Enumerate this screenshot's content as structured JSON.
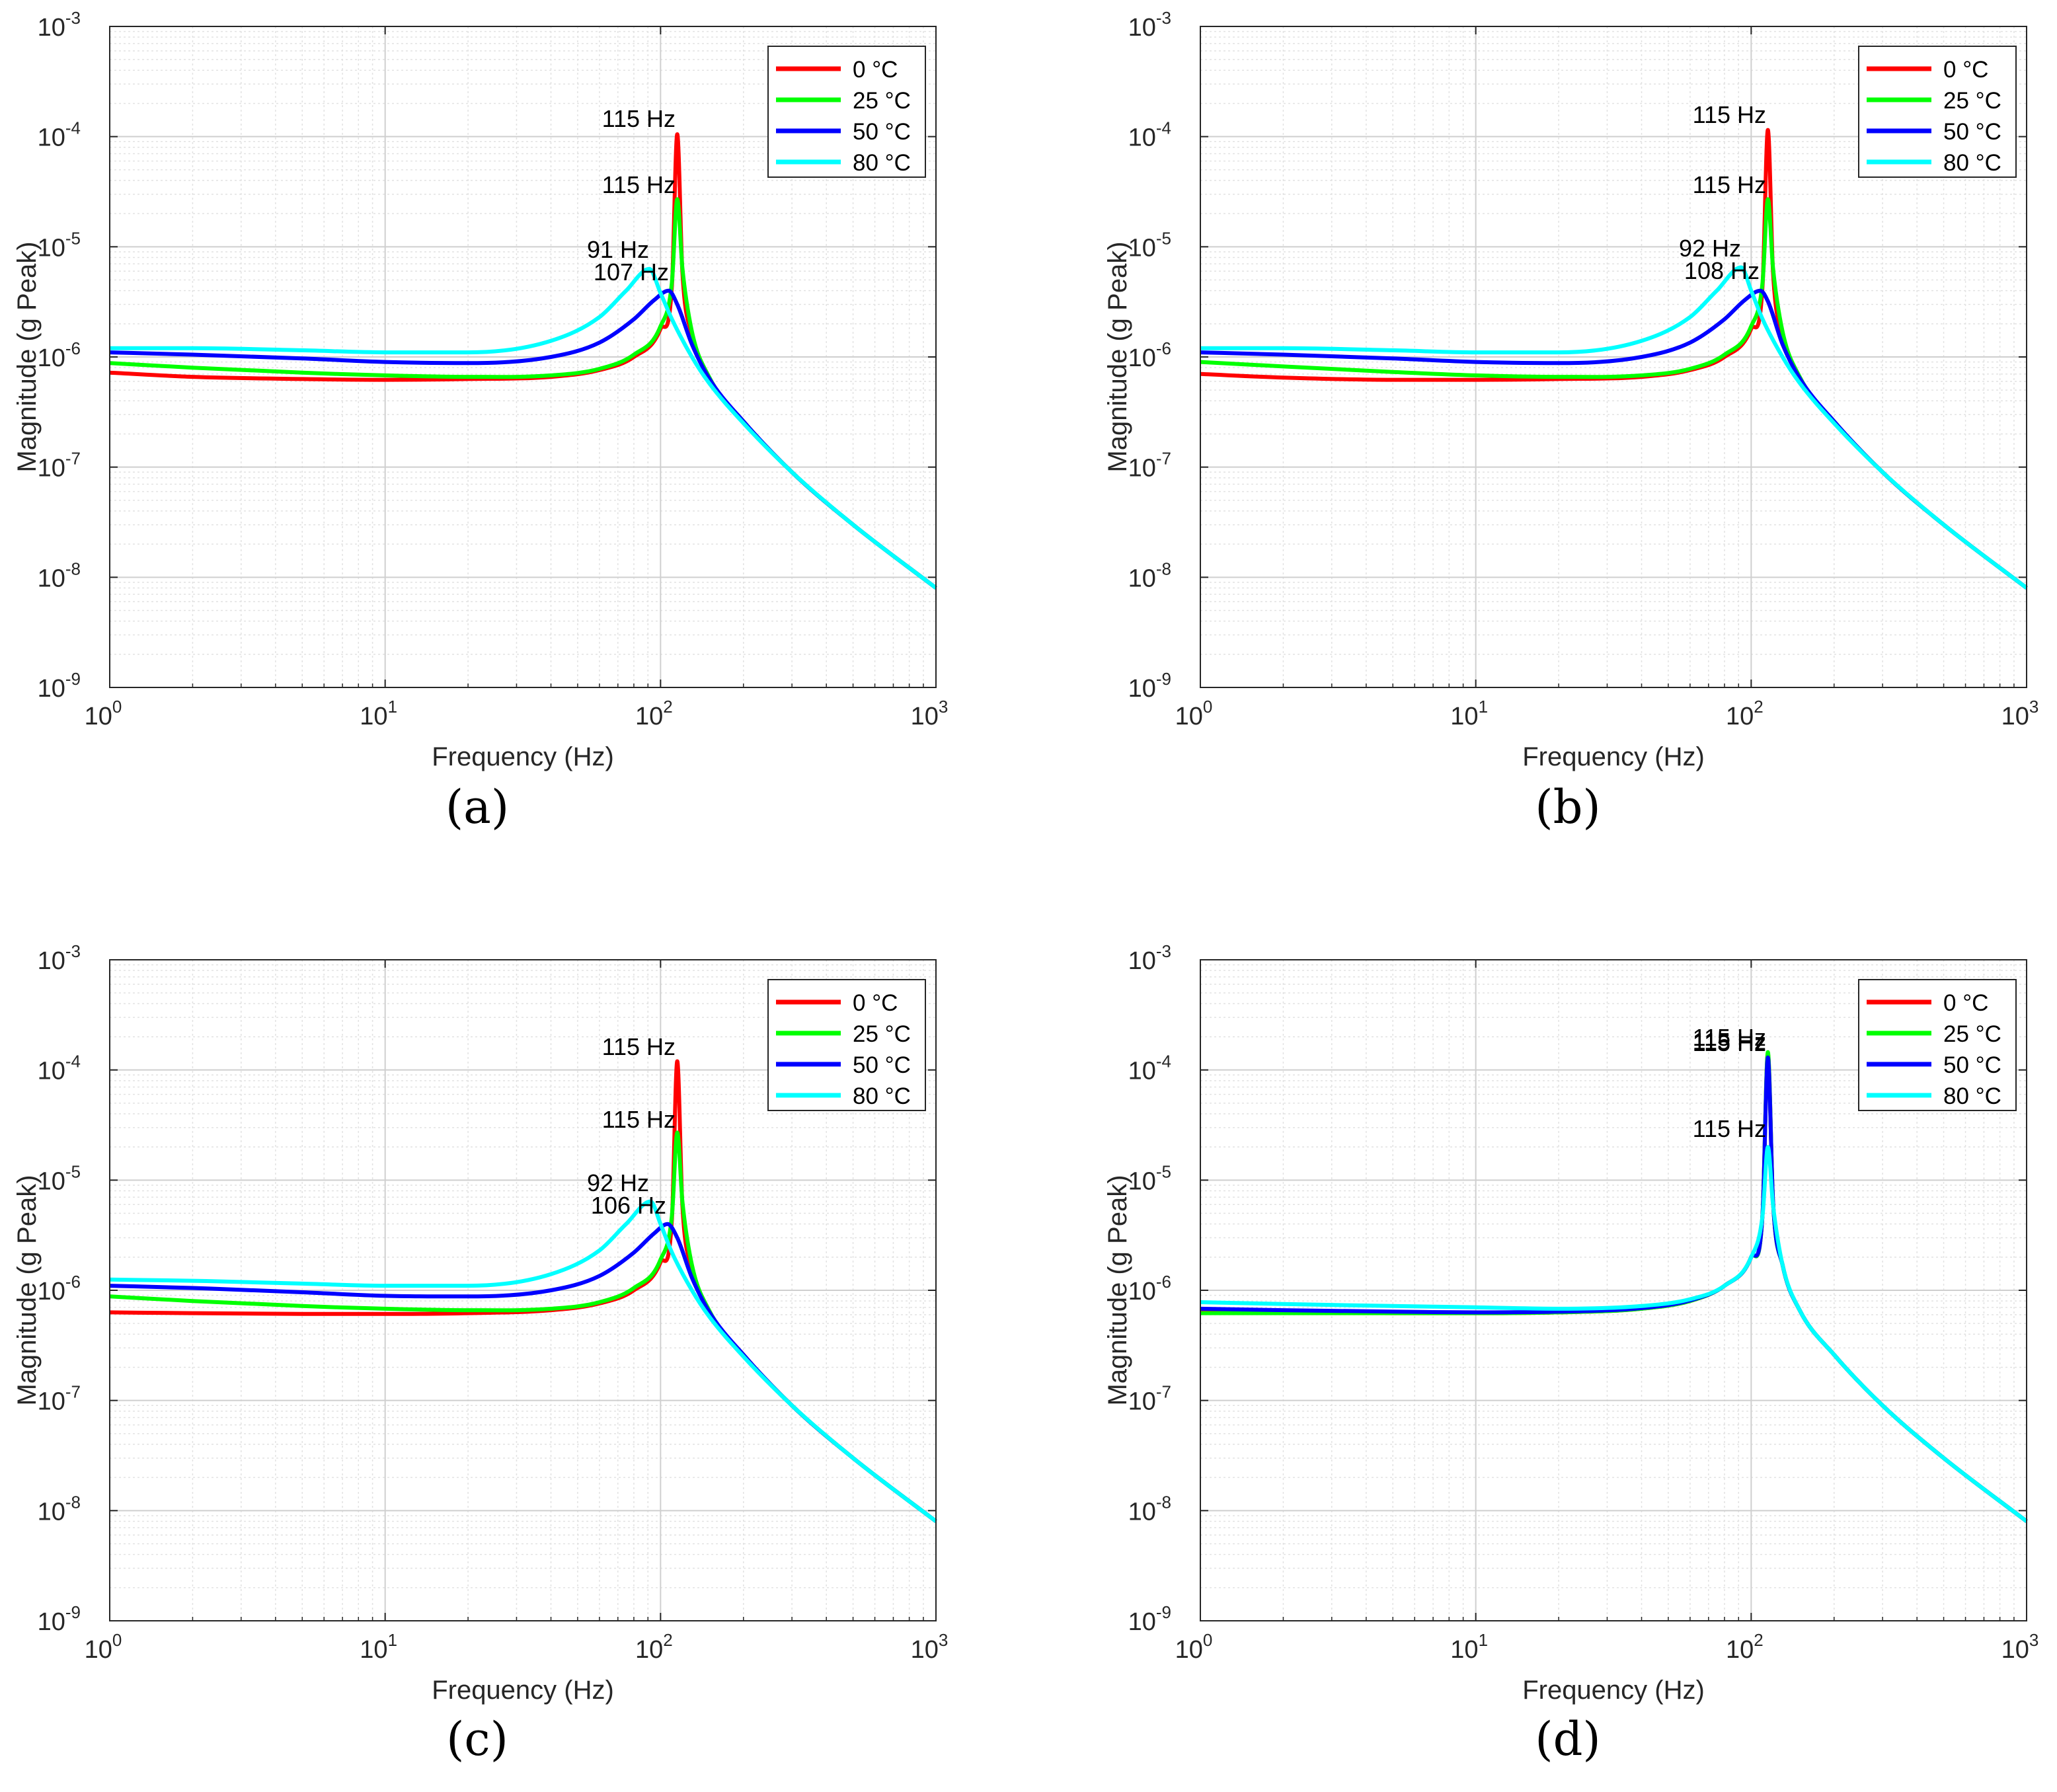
{
  "figure": {
    "panels": [
      {
        "caption": "(a)",
        "peak_labels": [
          "115 Hz",
          "115 Hz",
          "91 Hz",
          "107 Hz"
        ]
      },
      {
        "caption": "(b)",
        "peak_labels": [
          "115 Hz",
          "115 Hz",
          "92 Hz",
          "108 Hz"
        ]
      },
      {
        "caption": "(c)",
        "peak_labels": [
          "115 Hz",
          "115 Hz",
          "92 Hz",
          "106 Hz"
        ]
      },
      {
        "caption": "(d)",
        "peak_labels": [
          "115 Hz",
          "115 Hz",
          "115 Hz",
          "115 Hz"
        ]
      }
    ]
  },
  "chart_data": [
    {
      "type": "line",
      "caption": "(a)",
      "xlabel": "Frequency (Hz)",
      "ylabel": "Magnitude (g Peak)",
      "xscale": "log",
      "yscale": "log",
      "xlim": [
        1,
        1000
      ],
      "ylim": [
        1e-09,
        0.001
      ],
      "xticks": [
        "10^0",
        "10^1",
        "10^2",
        "10^3"
      ],
      "yticks": [
        "10^-9",
        "10^-8",
        "10^-7",
        "10^-6",
        "10^-5",
        "10^-4",
        "10^-3"
      ],
      "grid": true,
      "minor_grid": true,
      "legend": "top-right",
      "series": [
        {
          "name": "0 °C",
          "color": "#ff0000",
          "x": [
            1,
            2,
            5,
            10,
            20,
            40,
            60,
            80,
            100,
            110,
            115,
            120,
            130,
            150,
            200,
            300,
            500,
            1000
          ],
          "y": [
            7.2e-07,
            6.6e-07,
            6.3e-07,
            6.2e-07,
            6.3e-07,
            6.6e-07,
            7.6e-07,
            1e-06,
            1.8e-06,
            4.5e-06,
            0.000105,
            6e-06,
            1.6e-06,
            6.5e-07,
            2.6e-07,
            9e-08,
            3e-08,
            8e-09
          ]
        },
        {
          "name": "25 °C",
          "color": "#00ff00",
          "x": [
            1,
            2,
            5,
            10,
            20,
            40,
            60,
            80,
            100,
            110,
            115,
            120,
            130,
            150,
            200,
            300,
            500,
            1000
          ],
          "y": [
            8.8e-07,
            8e-07,
            7.2e-07,
            6.8e-07,
            6.6e-07,
            6.8e-07,
            7.8e-07,
            1.05e-06,
            1.9e-06,
            4.8e-06,
            2.7e-05,
            6.5e-06,
            1.7e-06,
            6.6e-07,
            2.6e-07,
            9e-08,
            3e-08,
            8e-09
          ]
        },
        {
          "name": "50 °C",
          "color": "#0000ff",
          "x": [
            1,
            2,
            5,
            10,
            20,
            40,
            60,
            80,
            95,
            107,
            115,
            130,
            150,
            200,
            300,
            500,
            1000
          ],
          "y": [
            1.1e-06,
            1.05e-06,
            9.7e-07,
            9e-07,
            8.8e-07,
            1e-06,
            1.35e-06,
            2.2e-06,
            3.3e-06,
            4e-06,
            3e-06,
            1.3e-06,
            6.4e-07,
            2.6e-07,
            9e-08,
            3e-08,
            8e-09
          ]
        },
        {
          "name": "80 °C",
          "color": "#00ffff",
          "x": [
            1,
            2,
            5,
            10,
            20,
            40,
            60,
            75,
            91,
            100,
            110,
            130,
            150,
            200,
            300,
            500,
            1000
          ],
          "y": [
            1.2e-06,
            1.2e-06,
            1.15e-06,
            1.1e-06,
            1.1e-06,
            1.4e-06,
            2.3e-06,
            4e-06,
            6.3e-06,
            3.8e-06,
            2.2e-06,
            1e-06,
            5.8e-07,
            2.5e-07,
            9e-08,
            3e-08,
            8e-09
          ]
        }
      ]
    },
    {
      "type": "line",
      "caption": "(b)",
      "xlabel": "Frequency (Hz)",
      "ylabel": "Magnitude (g Peak)",
      "xscale": "log",
      "yscale": "log",
      "xlim": [
        1,
        1000
      ],
      "ylim": [
        1e-09,
        0.001
      ],
      "xticks": [
        "10^0",
        "10^1",
        "10^2",
        "10^3"
      ],
      "yticks": [
        "10^-9",
        "10^-8",
        "10^-7",
        "10^-6",
        "10^-5",
        "10^-4",
        "10^-3"
      ],
      "grid": true,
      "minor_grid": true,
      "legend": "top-right",
      "series": [
        {
          "name": "0 °C",
          "color": "#ff0000",
          "x": [
            1,
            2,
            5,
            10,
            20,
            40,
            60,
            80,
            100,
            110,
            115,
            120,
            130,
            150,
            200,
            300,
            500,
            1000
          ],
          "y": [
            7e-07,
            6.5e-07,
            6.2e-07,
            6.2e-07,
            6.3e-07,
            6.6e-07,
            7.6e-07,
            1e-06,
            1.8e-06,
            4.5e-06,
            0.000115,
            6e-06,
            1.6e-06,
            6.5e-07,
            2.6e-07,
            9e-08,
            3e-08,
            8e-09
          ]
        },
        {
          "name": "25 °C",
          "color": "#00ff00",
          "x": [
            1,
            2,
            5,
            10,
            20,
            40,
            60,
            80,
            100,
            110,
            115,
            120,
            130,
            150,
            200,
            300,
            500,
            1000
          ],
          "y": [
            9e-07,
            8.2e-07,
            7.3e-07,
            6.8e-07,
            6.6e-07,
            6.8e-07,
            7.8e-07,
            1.05e-06,
            1.9e-06,
            4.8e-06,
            2.7e-05,
            6.5e-06,
            1.7e-06,
            6.6e-07,
            2.6e-07,
            9e-08,
            3e-08,
            8e-09
          ]
        },
        {
          "name": "50 °C",
          "color": "#0000ff",
          "x": [
            1,
            2,
            5,
            10,
            20,
            40,
            60,
            80,
            95,
            108,
            115,
            130,
            150,
            200,
            300,
            500,
            1000
          ],
          "y": [
            1.1e-06,
            1.05e-06,
            9.7e-07,
            9e-07,
            8.8e-07,
            1e-06,
            1.35e-06,
            2.2e-06,
            3.3e-06,
            4e-06,
            3.2e-06,
            1.3e-06,
            6.4e-07,
            2.6e-07,
            9e-08,
            3e-08,
            8e-09
          ]
        },
        {
          "name": "80 °C",
          "color": "#00ffff",
          "x": [
            1,
            2,
            5,
            10,
            20,
            40,
            60,
            75,
            92,
            100,
            110,
            130,
            150,
            200,
            300,
            500,
            1000
          ],
          "y": [
            1.2e-06,
            1.2e-06,
            1.15e-06,
            1.1e-06,
            1.1e-06,
            1.4e-06,
            2.3e-06,
            4e-06,
            6.5e-06,
            4e-06,
            2.2e-06,
            1e-06,
            5.8e-07,
            2.5e-07,
            9e-08,
            3e-08,
            8e-09
          ]
        }
      ]
    },
    {
      "type": "line",
      "caption": "(c)",
      "xlabel": "Frequency (Hz)",
      "ylabel": "Magnitude (g Peak)",
      "xscale": "log",
      "yscale": "log",
      "xlim": [
        1,
        1000
      ],
      "ylim": [
        1e-09,
        0.001
      ],
      "xticks": [
        "10^0",
        "10^1",
        "10^2",
        "10^3"
      ],
      "yticks": [
        "10^-9",
        "10^-8",
        "10^-7",
        "10^-6",
        "10^-5",
        "10^-4",
        "10^-3"
      ],
      "grid": true,
      "minor_grid": true,
      "legend": "top-right",
      "series": [
        {
          "name": "0 °C",
          "color": "#ff0000",
          "x": [
            1,
            2,
            5,
            10,
            20,
            40,
            60,
            80,
            100,
            110,
            115,
            120,
            130,
            150,
            200,
            300,
            500,
            1000
          ],
          "y": [
            6.3e-07,
            6.2e-07,
            6.1e-07,
            6.1e-07,
            6.2e-07,
            6.6e-07,
            7.6e-07,
            1e-06,
            1.8e-06,
            4.5e-06,
            0.00012,
            6e-06,
            1.6e-06,
            6.5e-07,
            2.6e-07,
            9e-08,
            3e-08,
            8e-09
          ]
        },
        {
          "name": "25 °C",
          "color": "#00ff00",
          "x": [
            1,
            2,
            5,
            10,
            20,
            40,
            60,
            80,
            100,
            110,
            115,
            120,
            130,
            150,
            200,
            300,
            500,
            1000
          ],
          "y": [
            8.8e-07,
            8e-07,
            7.2e-07,
            6.8e-07,
            6.6e-07,
            6.8e-07,
            7.8e-07,
            1.05e-06,
            1.9e-06,
            4.8e-06,
            2.7e-05,
            6.5e-06,
            1.7e-06,
            6.6e-07,
            2.6e-07,
            9e-08,
            3e-08,
            8e-09
          ]
        },
        {
          "name": "50 °C",
          "color": "#0000ff",
          "x": [
            1,
            2,
            5,
            10,
            20,
            40,
            60,
            80,
            95,
            106,
            115,
            130,
            150,
            200,
            300,
            500,
            1000
          ],
          "y": [
            1.1e-06,
            1.05e-06,
            9.6e-07,
            8.9e-07,
            8.8e-07,
            1e-06,
            1.35e-06,
            2.2e-06,
            3.3e-06,
            4e-06,
            3e-06,
            1.3e-06,
            6.4e-07,
            2.6e-07,
            9e-08,
            3e-08,
            8e-09
          ]
        },
        {
          "name": "80 °C",
          "color": "#00ffff",
          "x": [
            1,
            2,
            5,
            10,
            20,
            40,
            60,
            75,
            92,
            100,
            110,
            130,
            150,
            200,
            300,
            500,
            1000
          ],
          "y": [
            1.25e-06,
            1.22e-06,
            1.15e-06,
            1.1e-06,
            1.1e-06,
            1.4e-06,
            2.3e-06,
            4e-06,
            6.4e-06,
            4e-06,
            2.2e-06,
            1e-06,
            5.8e-07,
            2.5e-07,
            9e-08,
            3e-08,
            8e-09
          ]
        }
      ]
    },
    {
      "type": "line",
      "caption": "(d)",
      "xlabel": "Frequency (Hz)",
      "ylabel": "Magnitude (g Peak)",
      "xscale": "log",
      "yscale": "log",
      "xlim": [
        1,
        1000
      ],
      "ylim": [
        1e-09,
        0.001
      ],
      "xticks": [
        "10^0",
        "10^1",
        "10^2",
        "10^3"
      ],
      "yticks": [
        "10^-9",
        "10^-8",
        "10^-7",
        "10^-6",
        "10^-5",
        "10^-4",
        "10^-3"
      ],
      "grid": true,
      "minor_grid": true,
      "legend": "top-right",
      "series": [
        {
          "name": "0 °C",
          "color": "#ff0000",
          "x": [
            1,
            2,
            5,
            10,
            20,
            40,
            60,
            80,
            100,
            110,
            115,
            120,
            130,
            150,
            200,
            300,
            500,
            1000
          ],
          "y": [
            6.5e-07,
            6.3e-07,
            6.2e-07,
            6.2e-07,
            6.3e-07,
            6.8e-07,
            8e-07,
            1.1e-06,
            2e-06,
            5e-06,
            0.00014,
            6.5e-06,
            1.7e-06,
            6.6e-07,
            2.6e-07,
            9e-08,
            3e-08,
            8e-09
          ]
        },
        {
          "name": "25 °C",
          "color": "#00ff00",
          "x": [
            1,
            2,
            5,
            10,
            20,
            40,
            60,
            80,
            100,
            110,
            115,
            120,
            130,
            150,
            200,
            300,
            500,
            1000
          ],
          "y": [
            6.2e-07,
            6.2e-07,
            6.2e-07,
            6.2e-07,
            6.3e-07,
            6.8e-07,
            8e-07,
            1.1e-06,
            2e-06,
            5e-06,
            0.000145,
            6.5e-06,
            1.7e-06,
            6.6e-07,
            2.6e-07,
            9e-08,
            3e-08,
            8e-09
          ]
        },
        {
          "name": "50 °C",
          "color": "#0000ff",
          "x": [
            1,
            2,
            5,
            10,
            20,
            40,
            60,
            80,
            100,
            110,
            115,
            120,
            130,
            150,
            200,
            300,
            500,
            1000
          ],
          "y": [
            6.8e-07,
            6.6e-07,
            6.4e-07,
            6.3e-07,
            6.4e-07,
            6.9e-07,
            8.1e-07,
            1.1e-06,
            2e-06,
            5e-06,
            0.00013,
            6.5e-06,
            1.7e-06,
            6.6e-07,
            2.6e-07,
            9e-08,
            3e-08,
            8e-09
          ]
        },
        {
          "name": "80 °C",
          "color": "#00ffff",
          "x": [
            1,
            2,
            5,
            10,
            20,
            40,
            60,
            80,
            100,
            110,
            115,
            120,
            130,
            150,
            200,
            300,
            500,
            1000
          ],
          "y": [
            7.8e-07,
            7.5e-07,
            7.2e-07,
            7e-07,
            6.8e-07,
            7.2e-07,
            8.3e-07,
            1.1e-06,
            2e-06,
            4.8e-06,
            2e-05,
            6e-06,
            1.7e-06,
            6.6e-07,
            2.6e-07,
            9e-08,
            3e-08,
            8e-09
          ]
        }
      ]
    }
  ]
}
